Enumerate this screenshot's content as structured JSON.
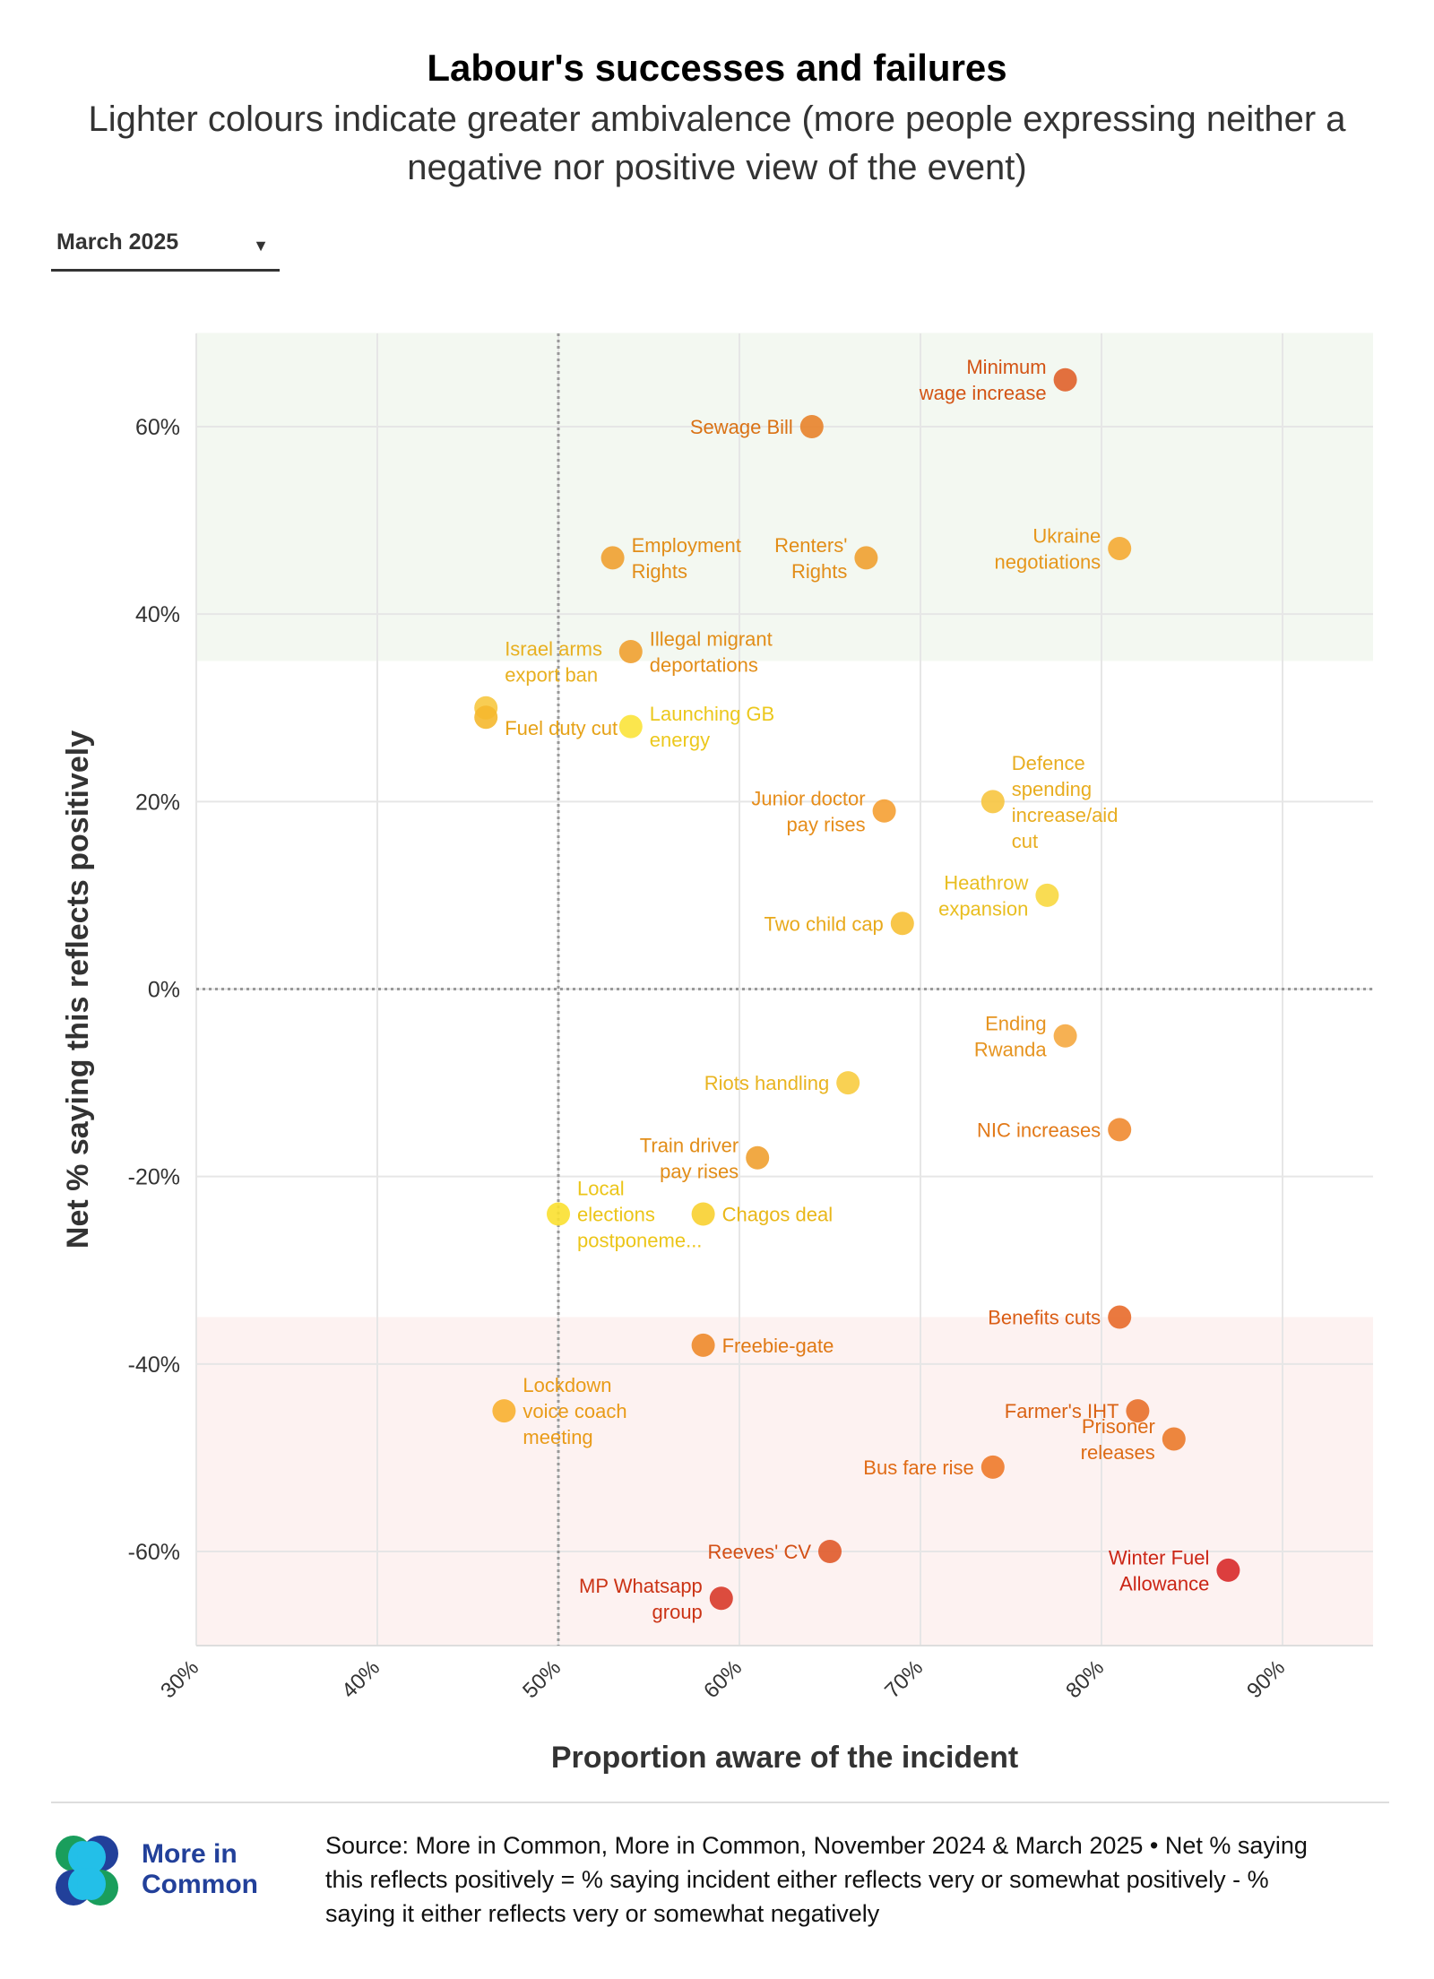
{
  "header": {
    "title": "Labour's successes and failures",
    "subtitle": "Lighter colours indicate greater ambivalence (more people expressing neither a negative nor positive view of the event)"
  },
  "controls": {
    "period_select": {
      "selected": "March 2025",
      "icon": "caret-down-icon"
    }
  },
  "chart_data": {
    "type": "scatter",
    "xlabel": "Proportion aware of the incident",
    "ylabel": "Net % saying this reflects positively",
    "xlim": [
      30,
      95
    ],
    "ylim": [
      -70,
      70
    ],
    "x_ticks": [
      "30%",
      "40%",
      "50%",
      "60%",
      "70%",
      "80%",
      "90%"
    ],
    "x_tick_values": [
      30,
      40,
      50,
      60,
      70,
      80,
      90
    ],
    "y_ticks": [
      "60%",
      "40%",
      "20%",
      "0%",
      "-20%",
      "-40%",
      "-60%"
    ],
    "y_tick_values": [
      60,
      40,
      20,
      0,
      -20,
      -40,
      -60
    ],
    "grid": true,
    "reference_lines": {
      "x": 50,
      "y": 0
    },
    "bands": [
      {
        "from": 35,
        "to": 70,
        "color": "#f3f8f1"
      },
      {
        "from": -70,
        "to": -35,
        "color": "#fdf2f1"
      }
    ],
    "points": [
      {
        "label": "Minimum wage increase",
        "lines": [
          "Minimum",
          "wage increase"
        ],
        "x": 78,
        "y": 65,
        "color": "#e0602a"
      },
      {
        "label": "Sewage Bill",
        "lines": [
          "Sewage Bill"
        ],
        "x": 64,
        "y": 60,
        "color": "#e8822a"
      },
      {
        "label": "Employment Rights",
        "lines": [
          "Employment",
          "Rights"
        ],
        "x": 53,
        "y": 46,
        "color": "#f0a030"
      },
      {
        "label": "Renters' Rights",
        "lines": [
          "Renters'",
          "Rights"
        ],
        "x": 67,
        "y": 46,
        "color": "#f0a030"
      },
      {
        "label": "Ukraine negotiations",
        "lines": [
          "Ukraine",
          "negotiations"
        ],
        "x": 81,
        "y": 47,
        "color": "#f5aa33"
      },
      {
        "label": "Illegal migrant deportations",
        "lines": [
          "Illegal migrant",
          "deportations"
        ],
        "x": 54,
        "y": 36,
        "color": "#f0a030"
      },
      {
        "label": "Israel arms export ban",
        "lines": [
          "Israel arms",
          "export ban"
        ],
        "x": 46,
        "y": 30,
        "color": "#f7c840"
      },
      {
        "label": "Fuel duty cut",
        "lines": [
          "Fuel duty cut"
        ],
        "x": 46,
        "y": 29,
        "color": "#f5b82e"
      },
      {
        "label": "Launching GB energy",
        "lines": [
          "Launching GB",
          "energy"
        ],
        "x": 54,
        "y": 28,
        "color": "#fbe33a"
      },
      {
        "label": "Junior doctor pay rises",
        "lines": [
          "Junior doctor",
          "pay rises"
        ],
        "x": 68,
        "y": 19,
        "color": "#f5a033"
      },
      {
        "label": "Defence spending increase/aid cut",
        "lines": [
          "Defence",
          "spending",
          "increase/aid",
          "cut"
        ],
        "x": 74,
        "y": 20,
        "color": "#f7c540"
      },
      {
        "label": "Heathrow expansion",
        "lines": [
          "Heathrow",
          "expansion"
        ],
        "x": 77,
        "y": 10,
        "color": "#f8d840"
      },
      {
        "label": "Two child cap",
        "lines": [
          "Two child cap"
        ],
        "x": 69,
        "y": 7,
        "color": "#f7c035"
      },
      {
        "label": "Ending Rwanda",
        "lines": [
          "Ending",
          "Rwanda"
        ],
        "x": 78,
        "y": -5,
        "color": "#f5a840"
      },
      {
        "label": "Riots handling",
        "lines": [
          "Riots handling"
        ],
        "x": 66,
        "y": -10,
        "color": "#f8cc40"
      },
      {
        "label": "NIC increases",
        "lines": [
          "NIC increases"
        ],
        "x": 81,
        "y": -15,
        "color": "#f08a30"
      },
      {
        "label": "Train driver pay rises",
        "lines": [
          "Train driver",
          "pay rises"
        ],
        "x": 61,
        "y": -18,
        "color": "#f0a030"
      },
      {
        "label": "Local elections postponeme...",
        "lines": [
          "Local",
          "elections",
          "postponeme..."
        ],
        "x": 50,
        "y": -24,
        "color": "#fbe030"
      },
      {
        "label": "Chagos deal",
        "lines": [
          "Chagos deal"
        ],
        "x": 58,
        "y": -24,
        "color": "#f8d030"
      },
      {
        "label": "Benefits cuts",
        "lines": [
          "Benefits cuts"
        ],
        "x": 81,
        "y": -35,
        "color": "#e86a2a"
      },
      {
        "label": "Freebie-gate",
        "lines": [
          "Freebie-gate"
        ],
        "x": 58,
        "y": -38,
        "color": "#ee8a2a"
      },
      {
        "label": "Lockdown voice coach meeting",
        "lines": [
          "Lockdown",
          "voice coach",
          "meeting"
        ],
        "x": 47,
        "y": -45,
        "color": "#f8b030"
      },
      {
        "label": "Farmer's IHT",
        "lines": [
          "Farmer's IHT"
        ],
        "x": 82,
        "y": -45,
        "color": "#e8702a"
      },
      {
        "label": "Prisoner releases",
        "lines": [
          "Prisoner",
          "releases"
        ],
        "x": 84,
        "y": -48,
        "color": "#eb7a2a"
      },
      {
        "label": "Bus fare rise",
        "lines": [
          "Bus fare rise"
        ],
        "x": 74,
        "y": -51,
        "color": "#ee7a2a"
      },
      {
        "label": "Reeves' CV",
        "lines": [
          "Reeves' CV"
        ],
        "x": 65,
        "y": -60,
        "color": "#e05a2a"
      },
      {
        "label": "Winter Fuel Allowance",
        "lines": [
          "Winter Fuel",
          "Allowance"
        ],
        "x": 87,
        "y": -62,
        "color": "#d82a2a"
      },
      {
        "label": "MP Whatsapp group",
        "lines": [
          "MP Whatsapp",
          "group"
        ],
        "x": 59,
        "y": -65,
        "color": "#d83a2a"
      }
    ]
  },
  "footer": {
    "source": "Source: More in Common, More in Common, November 2024 & March 2025 • Net % saying this reflects positively = % saying incident either reflects very or somewhat positively - % saying it either reflects very or somewhat negatively",
    "logo_text": "More in Common",
    "logo_colors": [
      "#1a9e5c",
      "#22409a",
      "#23bfe8"
    ]
  }
}
